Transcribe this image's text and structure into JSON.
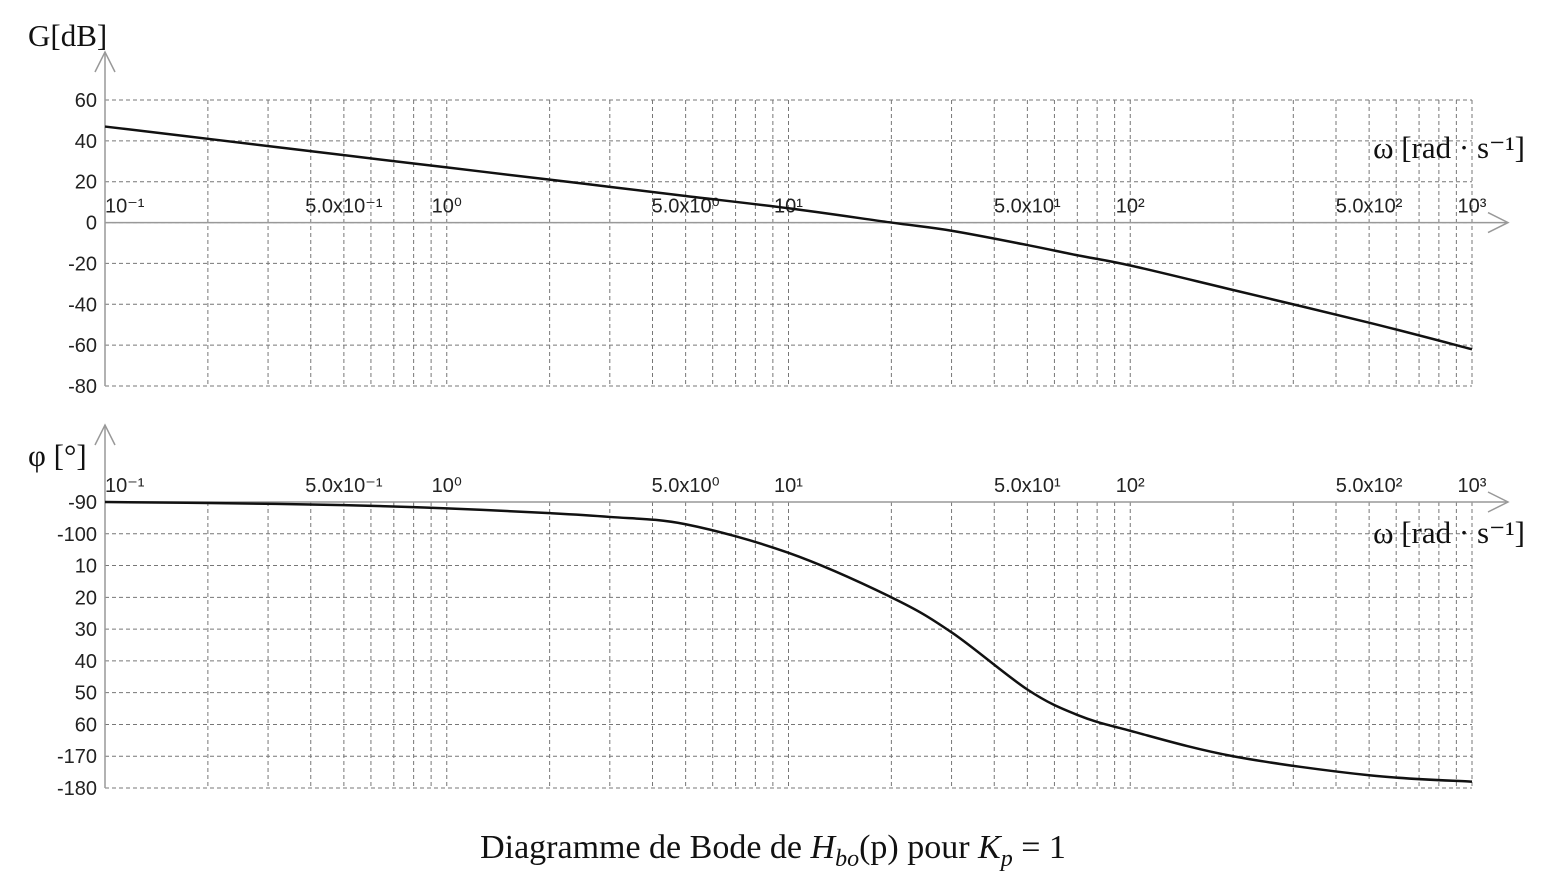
{
  "chart_data": [
    {
      "type": "line",
      "ylabel": "G[dB]",
      "xlabel": "ω [rad · s⁻¹]",
      "xscale": "log",
      "xlim": [
        0.1,
        1000
      ],
      "xticks": [
        {
          "value": 0.1,
          "label": "10⁻¹"
        },
        {
          "value": 0.5,
          "label": "5.0x10⁻¹"
        },
        {
          "value": 1,
          "label": "10⁰"
        },
        {
          "value": 5,
          "label": "5.0x10⁰"
        },
        {
          "value": 10,
          "label": "10¹"
        },
        {
          "value": 50,
          "label": "5.0x10¹"
        },
        {
          "value": 100,
          "label": "10²"
        },
        {
          "value": 500,
          "label": "5.0x10²"
        },
        {
          "value": 1000,
          "label": "10³"
        }
      ],
      "xgrid": [
        0.2,
        0.3,
        0.4,
        0.6,
        0.7,
        0.8,
        0.9,
        2,
        3,
        4,
        6,
        7,
        8,
        9,
        20,
        30,
        40,
        60,
        70,
        80,
        90,
        200,
        300,
        400,
        600,
        700,
        800,
        900
      ],
      "ylim": [
        -80,
        60
      ],
      "yticks": [
        -80,
        -60,
        -40,
        -20,
        0,
        20,
        40,
        60
      ],
      "grid": true,
      "x": [
        0.1,
        0.2,
        0.5,
        1,
        2,
        3,
        5,
        10,
        20,
        30,
        50,
        70,
        100,
        200,
        500,
        1000
      ],
      "series": [
        {
          "color": "#111111",
          "values": [
            47,
            41,
            33,
            27,
            21,
            17.5,
            13,
            7,
            0,
            -4,
            -11,
            -16,
            -21,
            -33,
            -49,
            -62
          ]
        }
      ]
    },
    {
      "type": "line",
      "ylabel": "φ [°]",
      "xlabel": "ω [rad · s⁻¹]",
      "xscale": "log",
      "xlim": [
        0.1,
        1000
      ],
      "xticks": [
        {
          "value": 0.1,
          "label": "10⁻¹"
        },
        {
          "value": 0.5,
          "label": "5.0x10⁻¹"
        },
        {
          "value": 1,
          "label": "10⁰"
        },
        {
          "value": 5,
          "label": "5.0x10⁰"
        },
        {
          "value": 10,
          "label": "10¹"
        },
        {
          "value": 50,
          "label": "5.0x10¹"
        },
        {
          "value": 100,
          "label": "10²"
        },
        {
          "value": 500,
          "label": "5.0x10²"
        },
        {
          "value": 1000,
          "label": "10³"
        }
      ],
      "xgrid": [
        0.2,
        0.3,
        0.4,
        0.6,
        0.7,
        0.8,
        0.9,
        2,
        3,
        4,
        6,
        7,
        8,
        9,
        20,
        30,
        40,
        60,
        70,
        80,
        90,
        200,
        300,
        400,
        600,
        700,
        800,
        900
      ],
      "ylim": [
        -180,
        -90
      ],
      "yticks": [
        -180,
        {
          "value": -170,
          "label": "-170"
        },
        {
          "value": -160,
          "label": "60"
        },
        {
          "value": -150,
          "label": "50"
        },
        {
          "value": -140,
          "label": "40"
        },
        {
          "value": -130,
          "label": "30"
        },
        {
          "value": -120,
          "label": "20"
        },
        {
          "value": -110,
          "label": "10"
        },
        -100,
        -90
      ],
      "grid": true,
      "x": [
        0.1,
        0.2,
        0.5,
        1,
        2,
        3,
        5,
        10,
        20,
        30,
        50,
        70,
        100,
        200,
        500,
        1000
      ],
      "series": [
        {
          "color": "#111111",
          "values": [
            -90,
            -90.3,
            -91,
            -92,
            -93.5,
            -94.7,
            -97,
            -106,
            -120,
            -131,
            -149,
            -157,
            -162,
            -170,
            -176,
            -178
          ]
        }
      ]
    }
  ],
  "caption": [
    "Diagramme de Bode de ",
    "H",
    "bo",
    "(p)",
    " pour ",
    "K",
    "p",
    " = 1"
  ]
}
